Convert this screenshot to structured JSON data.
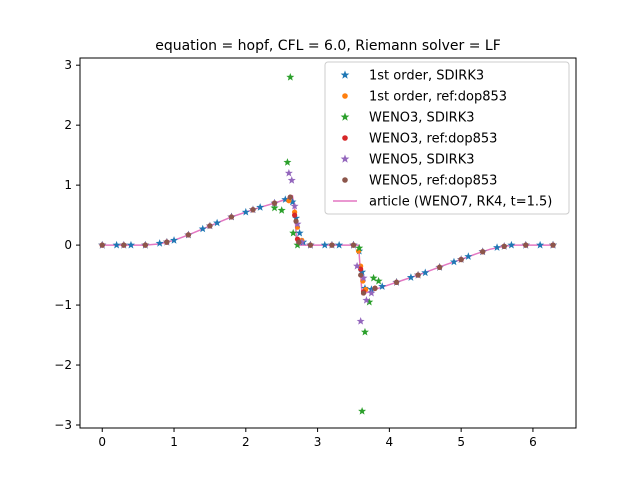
{
  "chart_data": {
    "type": "scatter",
    "title": "equation = hopf, CFL = 6.0, Riemann solver = LF",
    "xlabel": "",
    "ylabel": "",
    "xlim": [
      -0.31,
      6.6
    ],
    "ylim": [
      -3.05,
      3.12
    ],
    "xticks": [
      0,
      1,
      2,
      3,
      4,
      5,
      6
    ],
    "yticks": [
      -3,
      -2,
      -1,
      0,
      1,
      2,
      3
    ],
    "grid": false,
    "legend_placement": "top-right",
    "series": [
      {
        "name": "1st order, SDIRK3",
        "marker": "star",
        "color": "#1f77b4",
        "points": [
          [
            0,
            0
          ],
          [
            0.2,
            0
          ],
          [
            0.4,
            0
          ],
          [
            0.6,
            0
          ],
          [
            0.8,
            0.03
          ],
          [
            1.0,
            0.08
          ],
          [
            1.2,
            0.17
          ],
          [
            1.4,
            0.27
          ],
          [
            1.6,
            0.37
          ],
          [
            1.8,
            0.47
          ],
          [
            2.0,
            0.55
          ],
          [
            2.2,
            0.63
          ],
          [
            2.4,
            0.7
          ],
          [
            2.55,
            0.76
          ],
          [
            2.65,
            0.72
          ],
          [
            2.7,
            0.45
          ],
          [
            2.75,
            0.2
          ],
          [
            2.8,
            0.05
          ],
          [
            2.9,
            0
          ],
          [
            3.1,
            0
          ],
          [
            3.3,
            0
          ],
          [
            3.5,
            0
          ],
          [
            3.58,
            -0.1
          ],
          [
            3.62,
            -0.45
          ],
          [
            3.66,
            -0.72
          ],
          [
            3.75,
            -0.74
          ],
          [
            3.9,
            -0.69
          ],
          [
            4.1,
            -0.62
          ],
          [
            4.3,
            -0.54
          ],
          [
            4.5,
            -0.46
          ],
          [
            4.7,
            -0.37
          ],
          [
            4.9,
            -0.28
          ],
          [
            5.1,
            -0.19
          ],
          [
            5.3,
            -0.11
          ],
          [
            5.5,
            -0.04
          ],
          [
            5.7,
            0
          ],
          [
            5.9,
            0
          ],
          [
            6.1,
            0
          ],
          [
            6.28,
            0
          ]
        ]
      },
      {
        "name": "1st order, ref:dop853",
        "marker": "dot",
        "color": "#ff7f0e",
        "points": [
          [
            0,
            0
          ],
          [
            0.3,
            0
          ],
          [
            0.6,
            0
          ],
          [
            0.9,
            0.05
          ],
          [
            1.2,
            0.17
          ],
          [
            1.5,
            0.32
          ],
          [
            1.8,
            0.47
          ],
          [
            2.1,
            0.59
          ],
          [
            2.4,
            0.7
          ],
          [
            2.6,
            0.74
          ],
          [
            2.68,
            0.55
          ],
          [
            2.72,
            0.3
          ],
          [
            2.78,
            0.08
          ],
          [
            2.9,
            0
          ],
          [
            3.2,
            0
          ],
          [
            3.5,
            0
          ],
          [
            3.57,
            -0.1
          ],
          [
            3.6,
            -0.35
          ],
          [
            3.63,
            -0.6
          ],
          [
            3.67,
            -0.74
          ],
          [
            3.8,
            -0.72
          ],
          [
            4.1,
            -0.62
          ],
          [
            4.4,
            -0.5
          ],
          [
            4.7,
            -0.37
          ],
          [
            5.0,
            -0.24
          ],
          [
            5.3,
            -0.11
          ],
          [
            5.6,
            -0.02
          ],
          [
            5.9,
            0
          ],
          [
            6.28,
            0
          ]
        ]
      },
      {
        "name": "WENO3, SDIRK3",
        "marker": "star",
        "color": "#2ca02c",
        "points": [
          [
            0,
            0
          ],
          [
            0.3,
            0
          ],
          [
            0.6,
            0
          ],
          [
            0.9,
            0.05
          ],
          [
            1.2,
            0.17
          ],
          [
            1.5,
            0.32
          ],
          [
            1.8,
            0.47
          ],
          [
            2.1,
            0.59
          ],
          [
            2.4,
            0.62
          ],
          [
            2.5,
            0.58
          ],
          [
            2.58,
            1.38
          ],
          [
            2.62,
            2.8
          ],
          [
            2.66,
            0.2
          ],
          [
            2.72,
            0
          ],
          [
            2.9,
            0
          ],
          [
            3.2,
            0
          ],
          [
            3.5,
            0
          ],
          [
            3.58,
            -0.05
          ],
          [
            3.62,
            -2.77
          ],
          [
            3.66,
            -1.45
          ],
          [
            3.72,
            -0.95
          ],
          [
            3.78,
            -0.55
          ],
          [
            3.85,
            -0.6
          ],
          [
            4.1,
            -0.62
          ],
          [
            4.4,
            -0.5
          ],
          [
            4.7,
            -0.37
          ],
          [
            5.0,
            -0.24
          ],
          [
            5.3,
            -0.11
          ],
          [
            5.6,
            -0.02
          ],
          [
            5.9,
            0
          ],
          [
            6.28,
            0
          ]
        ]
      },
      {
        "name": "WENO3, ref:dop853",
        "marker": "dot",
        "color": "#d62728",
        "points": [
          [
            0,
            0
          ],
          [
            0.3,
            0
          ],
          [
            0.6,
            0
          ],
          [
            0.9,
            0.05
          ],
          [
            1.2,
            0.17
          ],
          [
            1.5,
            0.32
          ],
          [
            1.8,
            0.47
          ],
          [
            2.1,
            0.59
          ],
          [
            2.4,
            0.7
          ],
          [
            2.62,
            0.8
          ],
          [
            2.68,
            0.5
          ],
          [
            2.72,
            0.1
          ],
          [
            2.9,
            0
          ],
          [
            3.2,
            0
          ],
          [
            3.5,
            0
          ],
          [
            3.6,
            -0.4
          ],
          [
            3.64,
            -0.78
          ],
          [
            3.8,
            -0.72
          ],
          [
            4.1,
            -0.62
          ],
          [
            4.4,
            -0.5
          ],
          [
            4.7,
            -0.37
          ],
          [
            5.0,
            -0.24
          ],
          [
            5.3,
            -0.11
          ],
          [
            5.6,
            -0.02
          ],
          [
            5.9,
            0
          ],
          [
            6.28,
            0
          ]
        ]
      },
      {
        "name": "WENO5, SDIRK3",
        "marker": "star",
        "color": "#9467bd",
        "points": [
          [
            0,
            0
          ],
          [
            0.3,
            0
          ],
          [
            0.6,
            0
          ],
          [
            0.9,
            0.05
          ],
          [
            1.2,
            0.17
          ],
          [
            1.5,
            0.32
          ],
          [
            1.8,
            0.47
          ],
          [
            2.1,
            0.59
          ],
          [
            2.4,
            0.7
          ],
          [
            2.6,
            1.2
          ],
          [
            2.64,
            1.08
          ],
          [
            2.68,
            0.65
          ],
          [
            2.72,
            0.35
          ],
          [
            2.78,
            0.05
          ],
          [
            2.9,
            0
          ],
          [
            3.2,
            0
          ],
          [
            3.5,
            0
          ],
          [
            3.55,
            -0.35
          ],
          [
            3.6,
            -1.27
          ],
          [
            3.64,
            -0.55
          ],
          [
            3.68,
            -0.92
          ],
          [
            3.75,
            -0.8
          ],
          [
            4.1,
            -0.62
          ],
          [
            4.4,
            -0.5
          ],
          [
            4.7,
            -0.37
          ],
          [
            5.0,
            -0.24
          ],
          [
            5.3,
            -0.11
          ],
          [
            5.6,
            -0.02
          ],
          [
            5.9,
            0
          ],
          [
            6.28,
            0
          ]
        ]
      },
      {
        "name": "WENO5, ref:dop853",
        "marker": "dot",
        "color": "#8c564b",
        "points": [
          [
            0,
            0
          ],
          [
            0.3,
            0
          ],
          [
            0.6,
            0
          ],
          [
            0.9,
            0.05
          ],
          [
            1.2,
            0.17
          ],
          [
            1.5,
            0.32
          ],
          [
            1.8,
            0.47
          ],
          [
            2.1,
            0.59
          ],
          [
            2.4,
            0.7
          ],
          [
            2.62,
            0.8
          ],
          [
            2.7,
            0.4
          ],
          [
            2.74,
            0.05
          ],
          [
            2.9,
            0
          ],
          [
            3.2,
            0
          ],
          [
            3.5,
            0
          ],
          [
            3.6,
            -0.5
          ],
          [
            3.64,
            -0.8
          ],
          [
            3.8,
            -0.72
          ],
          [
            4.1,
            -0.62
          ],
          [
            4.4,
            -0.5
          ],
          [
            4.7,
            -0.37
          ],
          [
            5.0,
            -0.24
          ],
          [
            5.3,
            -0.11
          ],
          [
            5.6,
            -0.02
          ],
          [
            5.9,
            0
          ],
          [
            6.28,
            0
          ]
        ]
      },
      {
        "name": "article (WENO7, RK4, t=1.5)",
        "marker": "line",
        "color": "#e377c2",
        "points": [
          [
            0,
            0
          ],
          [
            0.6,
            0
          ],
          [
            0.8,
            0.02
          ],
          [
            1.0,
            0.08
          ],
          [
            1.2,
            0.17
          ],
          [
            1.4,
            0.27
          ],
          [
            1.6,
            0.37
          ],
          [
            1.8,
            0.47
          ],
          [
            2.0,
            0.55
          ],
          [
            2.2,
            0.63
          ],
          [
            2.4,
            0.7
          ],
          [
            2.55,
            0.76
          ],
          [
            2.65,
            0.82
          ],
          [
            2.68,
            0.6
          ],
          [
            2.71,
            0.02
          ],
          [
            2.73,
            0
          ],
          [
            3.0,
            0
          ],
          [
            3.3,
            0
          ],
          [
            3.57,
            0
          ],
          [
            3.6,
            -0.5
          ],
          [
            3.62,
            -0.82
          ],
          [
            3.8,
            -0.74
          ],
          [
            4.0,
            -0.66
          ],
          [
            4.2,
            -0.58
          ],
          [
            4.4,
            -0.5
          ],
          [
            4.6,
            -0.41
          ],
          [
            4.8,
            -0.32
          ],
          [
            5.0,
            -0.24
          ],
          [
            5.2,
            -0.15
          ],
          [
            5.4,
            -0.07
          ],
          [
            5.6,
            -0.02
          ],
          [
            5.75,
            0
          ],
          [
            6.0,
            0
          ],
          [
            6.28,
            0
          ]
        ]
      }
    ]
  }
}
